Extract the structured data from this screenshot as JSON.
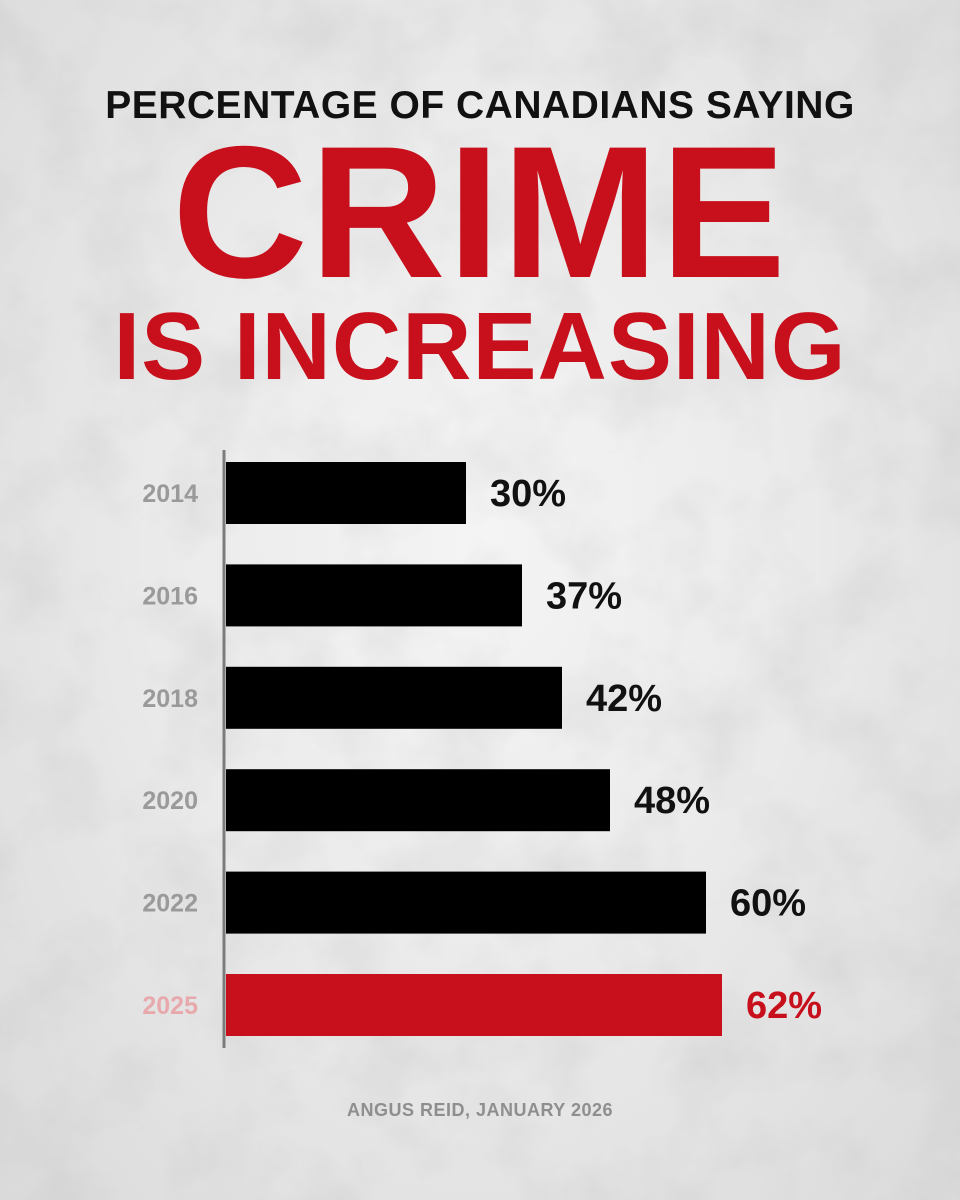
{
  "header": {
    "subtitle": "PERCENTAGE OF CANADIANS SAYING",
    "title_line1": "CRIME",
    "title_line2": "IS INCREASING"
  },
  "footer": {
    "source": "ANGUS REID, JANUARY 2026"
  },
  "colors": {
    "accent_red": "#c8101c",
    "bar_black": "#000000",
    "year_gray": "#9a9a9a",
    "highlight_year": "#e8a9ad"
  },
  "chart_data": {
    "type": "bar",
    "orientation": "horizontal",
    "categories": [
      "2014",
      "2016",
      "2018",
      "2020",
      "2022",
      "2025"
    ],
    "values": [
      30,
      37,
      42,
      48,
      60,
      62
    ],
    "data_labels": [
      "30%",
      "37%",
      "42%",
      "48%",
      "60%",
      "62%"
    ],
    "highlight_category": "2025",
    "xlim": [
      0,
      100
    ],
    "grid": false,
    "legend": "none"
  }
}
